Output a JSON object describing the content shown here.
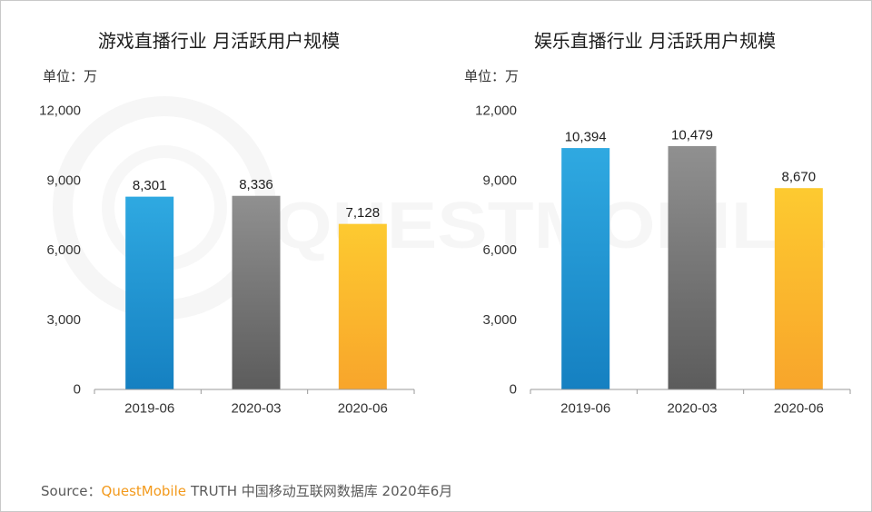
{
  "watermark": "QUESTMOBILE",
  "palette": {
    "blue": [
      "#2fa9e1",
      "#1580c1"
    ],
    "gray": [
      "#909090",
      "#5c5c5c"
    ],
    "yellow": [
      "#fdca30",
      "#f8a52b"
    ],
    "axis": "#9a9a9a",
    "brand": "#f39a1c"
  },
  "chart_data": [
    {
      "type": "bar",
      "title": "游戏直播行业 月活跃用户规模",
      "unit": "单位：万",
      "categories": [
        "2019-06",
        "2020-03",
        "2020-06"
      ],
      "values": [
        8301,
        8336,
        7128
      ],
      "bar_colors": [
        "blue",
        "gray",
        "yellow"
      ],
      "yticks": [
        0,
        3000,
        6000,
        9000,
        12000
      ],
      "ytick_labels": [
        "0",
        "3,000",
        "6,000",
        "9,000",
        "12,000"
      ],
      "ylim": [
        0,
        12000
      ],
      "grid": false,
      "legend": "none"
    },
    {
      "type": "bar",
      "title": "娱乐直播行业 月活跃用户规模",
      "unit": "单位：万",
      "categories": [
        "2019-06",
        "2020-03",
        "2020-06"
      ],
      "values": [
        10394,
        10479,
        8670
      ],
      "bar_colors": [
        "blue",
        "gray",
        "yellow"
      ],
      "yticks": [
        0,
        3000,
        6000,
        9000,
        12000
      ],
      "ytick_labels": [
        "0",
        "3,000",
        "6,000",
        "9,000",
        "12,000"
      ],
      "ylim": [
        0,
        12000
      ],
      "grid": false,
      "legend": "none"
    }
  ],
  "footer": {
    "source_label": "Source：",
    "brand": "QuestMobile",
    "detail": "TRUTH 中国移动互联网数据库 2020年6月"
  }
}
